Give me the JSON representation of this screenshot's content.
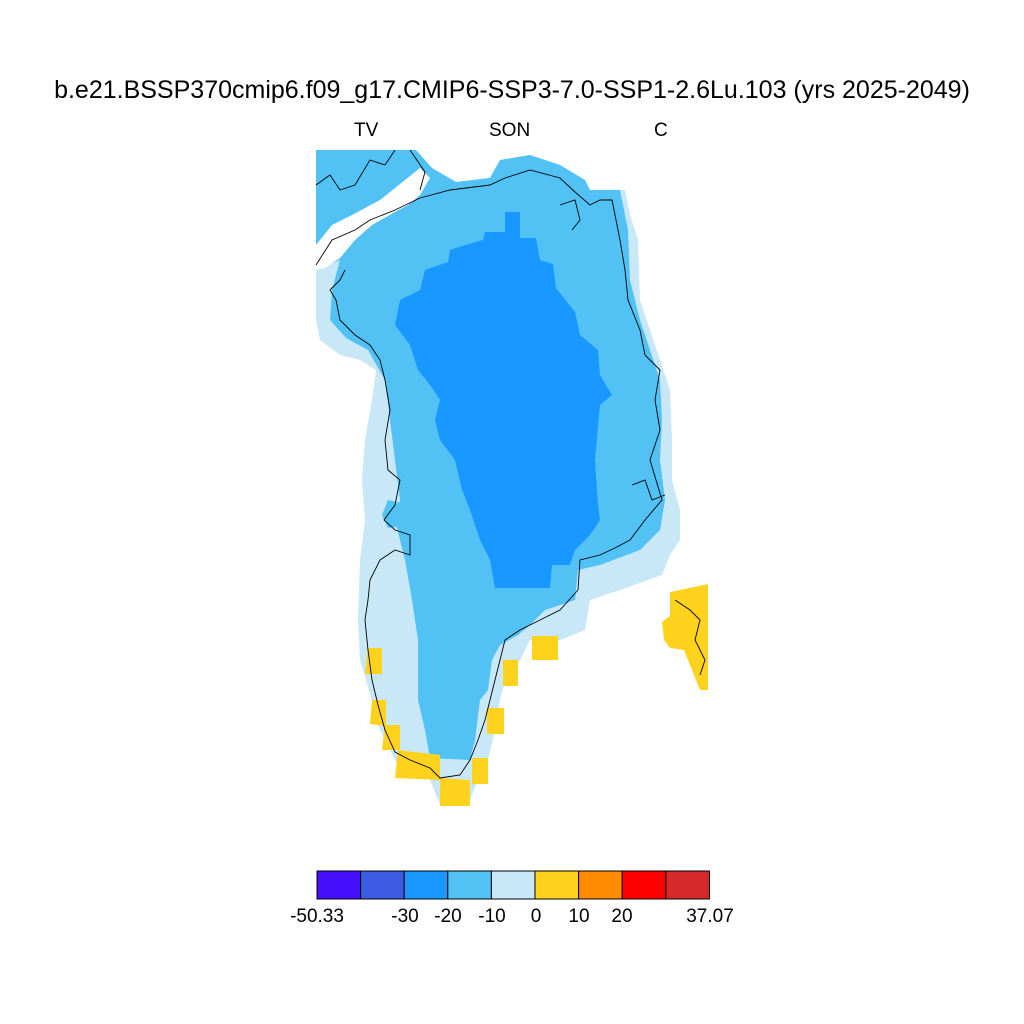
{
  "title": "b.e21.BSSP370cmip6.f09_g17.CMIP6-SSP3-7.0-SSP1-2.6Lu.103 (yrs 2025-2049)",
  "subtitle_left": "TV",
  "subtitle_center": "SON",
  "subtitle_right": "C",
  "colors": {
    "dark_blue": "#3d52e0",
    "blue": "#1999ff",
    "mid_blue": "#52c2f5",
    "light_blue": "#c8e8f7",
    "yellow": "#ffd21e",
    "coast": "#000000"
  },
  "colorbar": {
    "colors": [
      "#4410fb",
      "#3d5ce6",
      "#1999ff",
      "#52c2f5",
      "#c8e8f7",
      "#ffd21e",
      "#ff8c00",
      "#ff0000",
      "#d62a2a"
    ],
    "labels": [
      "-50.33",
      "-30",
      "-20",
      "-10",
      "0",
      "10",
      "20",
      "37.07"
    ]
  }
}
